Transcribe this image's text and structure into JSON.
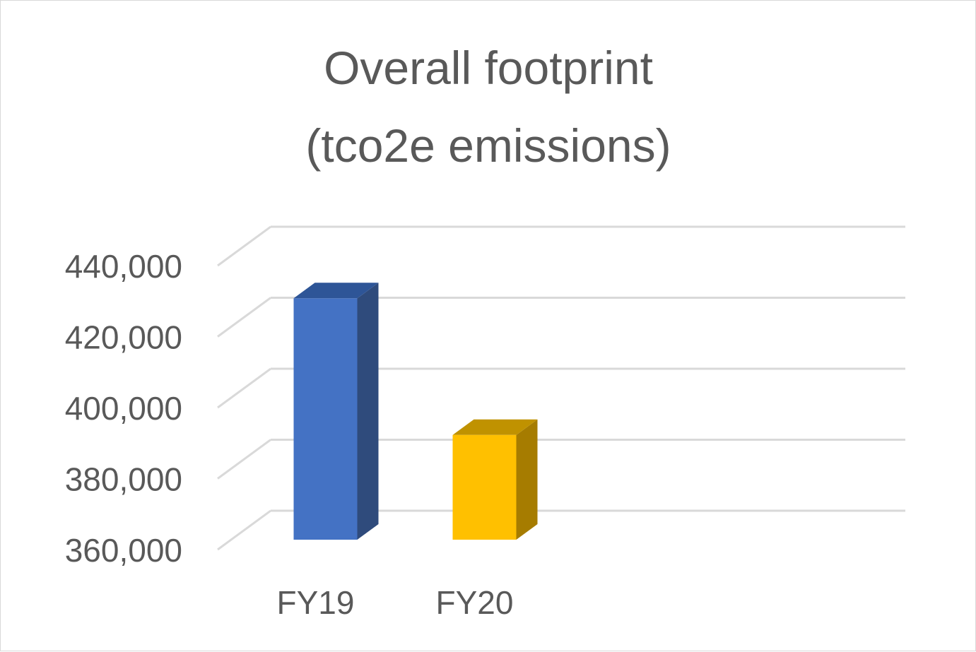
{
  "chart_data": {
    "type": "bar",
    "title_lines": [
      "Overall footprint",
      "(tco2e emissions)"
    ],
    "categories": [
      "FY19",
      "FY20"
    ],
    "series": [
      {
        "values": [
          428000,
          389500
        ]
      }
    ],
    "bar_colors": [
      "#4472C4",
      "#FFC000"
    ],
    "bar_side_colors": [
      "#2F4B7C",
      "#A67C00"
    ],
    "bar_top_colors": [
      "#2E5597",
      "#C09200"
    ],
    "ylim": [
      360000,
      440000
    ],
    "yticks": [
      360000,
      380000,
      400000,
      420000,
      440000
    ],
    "ytick_labels": [
      "360,000",
      "380,000",
      "400,000",
      "420,000",
      "440,000"
    ],
    "style": "3d-column",
    "grid": true,
    "gridline_color": "#d9d9d9",
    "text_color": "#595959"
  }
}
